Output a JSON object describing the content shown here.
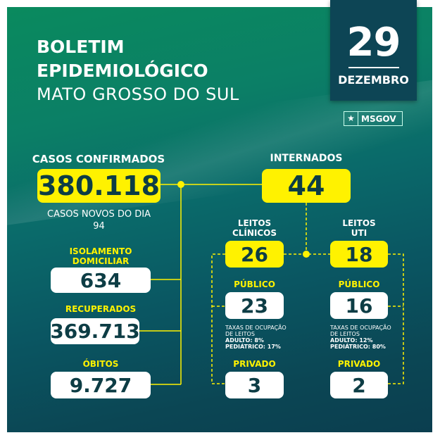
{
  "header": {
    "title_line1": "BOLETIM",
    "title_line2": "EPIDEMIOLÓGICO",
    "subtitle": "MATO GROSSO DO SUL"
  },
  "date": {
    "day": "29",
    "month": "DEZEMBRO"
  },
  "logo": {
    "icon": "star-icon",
    "text": "MSGOV"
  },
  "confirmed": {
    "label": "CASOS CONFIRMADOS",
    "value": "380.118",
    "new_label": "CASOS NOVOS DO DIA",
    "new_value": "94"
  },
  "isolation": {
    "label_line1": "ISOLAMENTO",
    "label_line2": "DOMICILIAR",
    "value": "634"
  },
  "recovered": {
    "label": "RECUPERADOS",
    "value": "369.713"
  },
  "deaths": {
    "label": "ÓBITOS",
    "value": "9.727"
  },
  "hospitalized": {
    "label": "INTERNADOS",
    "value": "44"
  },
  "clinical": {
    "label_line1": "LEITOS",
    "label_line2": "CLÍNICOS",
    "value": "26",
    "public_label": "PÚBLICO",
    "public_value": "23",
    "occupancy_line1": "TAXAS DE OCUPAÇÃO",
    "occupancy_line2": "DE LEITOS",
    "adult": "ADULTO: 8%",
    "pediatric": "PEDIÁTRICO: 17%",
    "private_label": "PRIVADO",
    "private_value": "3"
  },
  "icu": {
    "label_line1": "LEITOS",
    "label_line2": "UTI",
    "value": "18",
    "public_label": "PÚBLICO",
    "public_value": "16",
    "occupancy_line1": "TAXAS DE OCUPAÇÃO",
    "occupancy_line2": "DE LEITOS",
    "adult": "ADULTO: 12%",
    "pediatric": "PEDIÁTRICO: 80%",
    "private_label": "PRIVADO",
    "private_value": "2"
  },
  "colors": {
    "accent": "#fff200",
    "dark": "#0d3d45",
    "date_bg": "#0d4555"
  }
}
